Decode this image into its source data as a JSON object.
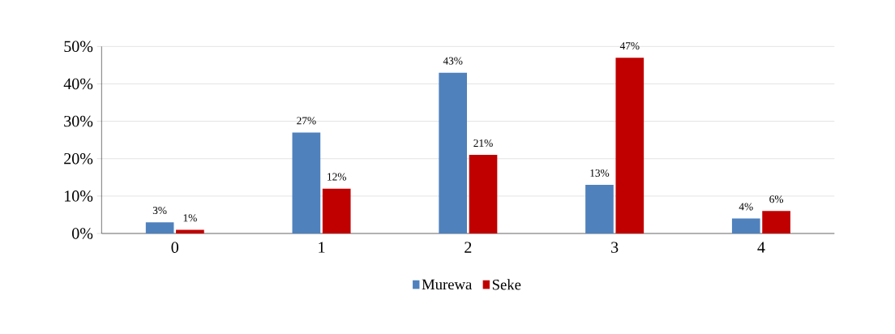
{
  "chart_data": {
    "type": "bar",
    "categories": [
      "0",
      "1",
      "2",
      "3",
      "4"
    ],
    "series": [
      {
        "name": "Murewa",
        "color": "#4f81bd",
        "values": [
          3,
          27,
          43,
          13,
          4
        ],
        "value_labels": [
          "3%",
          "27%",
          "43%",
          "13%",
          "4%"
        ]
      },
      {
        "name": "Seke",
        "color": "#c00000",
        "values": [
          1,
          12,
          21,
          47,
          6
        ],
        "value_labels": [
          "1%",
          "12%",
          "21%",
          "47%",
          "6%"
        ]
      }
    ],
    "ylim": [
      0,
      50
    ],
    "yticks": [
      {
        "value": 0,
        "label": "0%"
      },
      {
        "value": 10,
        "label": "10%"
      },
      {
        "value": 20,
        "label": "20%"
      },
      {
        "value": 30,
        "label": "30%"
      },
      {
        "value": 40,
        "label": "40%"
      },
      {
        "value": 50,
        "label": "50%"
      }
    ],
    "grid": "y",
    "legend": "bottom"
  }
}
